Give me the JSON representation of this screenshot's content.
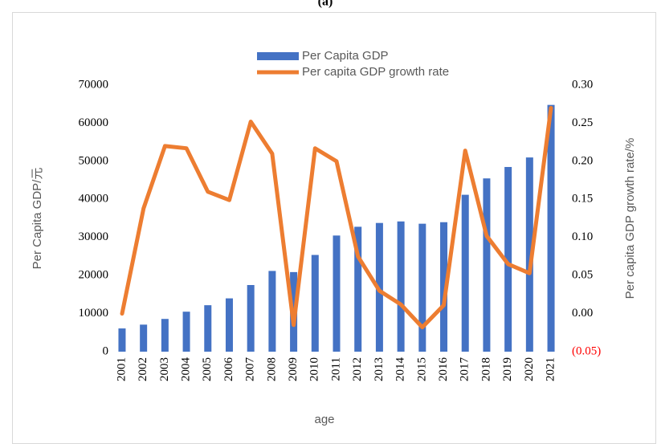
{
  "chart_data": {
    "type": "bar_line",
    "title": "(a)",
    "categories": [
      "2001",
      "2002",
      "2003",
      "2004",
      "2005",
      "2006",
      "2007",
      "2008",
      "2009",
      "2010",
      "2011",
      "2012",
      "2013",
      "2014",
      "2015",
      "2016",
      "2017",
      "2018",
      "2019",
      "2020",
      "2021"
    ],
    "series": [
      {
        "name": "Per Capita GDP",
        "type": "bar",
        "axis": "y",
        "color": "#4472c4",
        "values": [
          6100,
          7100,
          8600,
          10500,
          12200,
          14000,
          17500,
          21200,
          20900,
          25400,
          30500,
          32800,
          33800,
          34200,
          33600,
          34000,
          41200,
          45500,
          48500,
          51000,
          64800
        ]
      },
      {
        "name": "Per capita GDP growth rate",
        "type": "line",
        "axis": "y2",
        "color": "#ed7d31",
        "values": [
          0.0,
          0.138,
          0.22,
          0.217,
          0.16,
          0.149,
          0.252,
          0.21,
          -0.015,
          0.217,
          0.2,
          0.075,
          0.03,
          0.012,
          -0.018,
          0.011,
          0.214,
          0.102,
          0.065,
          0.053,
          0.27
        ]
      }
    ],
    "xlabel": "age",
    "ylabel": "Per Capita GDP/元",
    "y2label": "Per capita GDP growth rate/%",
    "ylim": [
      0,
      70000
    ],
    "yticks": [
      0,
      10000,
      20000,
      30000,
      40000,
      50000,
      60000,
      70000
    ],
    "y2lim": [
      -0.05,
      0.3
    ],
    "y2ticks": [
      {
        "value": -0.05,
        "label": "(0.05)"
      },
      {
        "value": 0.0,
        "label": "0.00"
      },
      {
        "value": 0.05,
        "label": "0.05"
      },
      {
        "value": 0.1,
        "label": "0.10"
      },
      {
        "value": 0.15,
        "label": "0.15"
      },
      {
        "value": 0.2,
        "label": "0.20"
      },
      {
        "value": 0.25,
        "label": "0.25"
      },
      {
        "value": 0.3,
        "label": "0.30"
      }
    ],
    "negative_tick_color": "#ff0000",
    "legend": "top",
    "grid": false
  }
}
